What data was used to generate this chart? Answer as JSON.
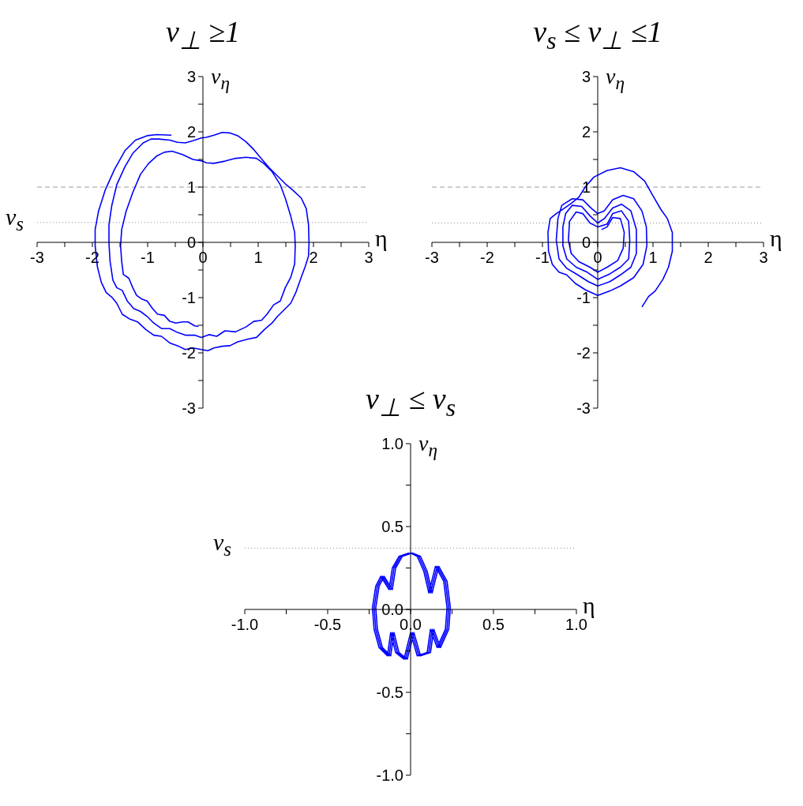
{
  "chart_data": [
    {
      "type": "line",
      "title": "v$_{⊥}$ ≥1",
      "xlabel": "η",
      "ylabel": "v$_{η}$",
      "xlim": [
        -3,
        3
      ],
      "ylim": [
        -3,
        3
      ],
      "xticks": [
        -3,
        {
          "value": -2.5,
          "label": null
        },
        -2,
        {
          "value": -1.5,
          "label": null
        },
        -1,
        {
          "value": -0.5,
          "label": null
        },
        0,
        {
          "value": 0.5,
          "label": null
        },
        1,
        {
          "value": 1.5,
          "label": null
        },
        2,
        {
          "value": 2.5,
          "label": null
        },
        3
      ],
      "yticks": [
        -3,
        {
          "value": -2.5,
          "label": null
        },
        -2,
        {
          "value": -1.5,
          "label": null
        },
        -1,
        {
          "value": -0.5,
          "label": null
        },
        0,
        {
          "value": 0.5,
          "label": null
        },
        1,
        {
          "value": 1.5,
          "label": null
        },
        2,
        {
          "value": 2.5,
          "label": null
        },
        3
      ],
      "ref_lines": [
        {
          "axis": "y",
          "value": 1,
          "color": "#999999",
          "line_style": "dashed"
        },
        {
          "axis": "y",
          "value": 0.36,
          "label": "v$_{s}$",
          "color": "#888888",
          "line_style": "dotted"
        }
      ],
      "series": [
        {
          "color": "#0000ff",
          "x": [
            -0.57,
            -0.84,
            -1.01,
            -1.22,
            -1.41,
            -1.6,
            -1.77,
            -1.89,
            -1.95,
            -1.95,
            -1.91,
            -1.84,
            -1.75,
            -1.65,
            -1.56,
            -1.46,
            -1.32,
            -1.18,
            -1.03,
            -0.89,
            -0.75,
            -0.6,
            -0.46,
            -0.32,
            -0.18,
            -0.03,
            0.09,
            0.2,
            0.35,
            0.49,
            0.63,
            0.82,
            0.97,
            1.11,
            1.25,
            1.35,
            1.49,
            1.59,
            1.68,
            1.78,
            1.85,
            1.91,
            1.92,
            1.91,
            1.87,
            1.78,
            1.63,
            1.49,
            1.35,
            1.2,
            1.06,
            0.92,
            0.78,
            0.63,
            0.49,
            0.35,
            0.2,
            0.06,
            -0.03,
            -0.18,
            -0.32,
            -0.46,
            -0.6,
            -0.8,
            -0.94,
            -1.08,
            -1.27,
            -1.41,
            -1.56,
            -1.65,
            -1.7,
            -1.7,
            -1.68,
            -1.63,
            -1.56,
            -1.46,
            -1.37,
            -1.25,
            -1.13,
            -1.01,
            -0.89,
            -0.75,
            -0.6,
            -0.46,
            -0.32,
            -0.15,
            -0.03,
            0.11,
            0.25,
            0.4,
            0.59,
            0.78,
            0.92,
            1.06,
            1.16,
            1.28,
            1.4,
            1.49,
            1.59,
            1.66,
            1.67,
            1.66,
            1.59,
            1.49,
            1.4,
            1.25,
            1.11,
            0.97,
            0.78,
            0.59,
            0.4,
            0.2,
            0.06,
            0.0,
            -0.18,
            -0.37,
            -0.56,
            -0.7,
            -0.84,
            -0.99,
            -1.13,
            -1.27,
            -1.39,
            -1.47,
            -1.49,
            -1.47,
            -1.44,
            -1.34,
            -1.27,
            -1.2,
            -1.1,
            -1.01,
            -0.91,
            -0.82,
            -0.7,
            -0.6,
            -0.49,
            -0.37,
            -0.27,
            -0.15,
            -0.08
          ],
          "values": [
            1.94,
            1.95,
            1.93,
            1.85,
            1.66,
            1.32,
            0.94,
            0.56,
            0.23,
            -0.06,
            -0.44,
            -0.72,
            -0.91,
            -0.99,
            -1.1,
            -1.3,
            -1.39,
            -1.44,
            -1.58,
            -1.68,
            -1.7,
            -1.82,
            -1.87,
            -1.94,
            -1.91,
            -1.94,
            -1.96,
            -1.91,
            -1.88,
            -1.87,
            -1.8,
            -1.75,
            -1.72,
            -1.58,
            -1.46,
            -1.34,
            -1.2,
            -1.1,
            -0.91,
            -0.63,
            -0.44,
            -0.25,
            -0.01,
            0.32,
            0.61,
            0.8,
            0.94,
            1.06,
            1.2,
            1.35,
            1.51,
            1.68,
            1.82,
            1.93,
            1.98,
            1.99,
            1.94,
            1.9,
            1.89,
            1.84,
            1.8,
            1.81,
            1.85,
            1.87,
            1.87,
            1.8,
            1.61,
            1.37,
            1.04,
            0.66,
            0.32,
            -0.01,
            -0.34,
            -0.68,
            -0.82,
            -0.87,
            -1.06,
            -1.2,
            -1.25,
            -1.34,
            -1.46,
            -1.56,
            -1.56,
            -1.63,
            -1.68,
            -1.68,
            -1.72,
            -1.67,
            -1.7,
            -1.6,
            -1.62,
            -1.53,
            -1.43,
            -1.41,
            -1.3,
            -1.13,
            -1.06,
            -0.82,
            -0.63,
            -0.39,
            -0.06,
            0.18,
            0.47,
            0.8,
            1.04,
            1.28,
            1.42,
            1.52,
            1.54,
            1.52,
            1.47,
            1.43,
            1.44,
            1.47,
            1.5,
            1.59,
            1.65,
            1.63,
            1.56,
            1.42,
            1.23,
            0.9,
            0.56,
            0.23,
            -0.06,
            -0.34,
            -0.58,
            -0.65,
            -0.82,
            -0.96,
            -1.03,
            -1.06,
            -1.2,
            -1.3,
            -1.32,
            -1.43,
            -1.46,
            -1.44,
            -1.44,
            -1.51,
            -1.52
          ]
        }
      ]
    },
    {
      "type": "line",
      "title": "v$_{s}$ ≤ v$_{⊥}$ ≤1",
      "xlabel": "η",
      "ylabel": "v$_{η}$",
      "xlim": [
        -3,
        3
      ],
      "ylim": [
        -3,
        3
      ],
      "xticks": [
        -3,
        {
          "value": -2.5,
          "label": null
        },
        -2,
        {
          "value": -1.5,
          "label": null
        },
        -1,
        {
          "value": -0.5,
          "label": null
        },
        0,
        {
          "value": 0.5,
          "label": null
        },
        1,
        {
          "value": 1.5,
          "label": null
        },
        2,
        {
          "value": 2.5,
          "label": null
        },
        3
      ],
      "yticks": [
        -3,
        {
          "value": -2.5,
          "label": null
        },
        -2,
        {
          "value": -1.5,
          "label": null
        },
        -1,
        {
          "value": -0.5,
          "label": null
        },
        0,
        {
          "value": 0.5,
          "label": null
        },
        1,
        {
          "value": 1.5,
          "label": null
        },
        2,
        {
          "value": 2.5,
          "label": null
        },
        3
      ],
      "ref_lines": [
        {
          "axis": "y",
          "value": 1,
          "color": "#999999",
          "line_style": "dashed"
        },
        {
          "axis": "y",
          "value": 0.35,
          "color": "#888888",
          "line_style": "dotted"
        }
      ],
      "series": [
        {
          "color": "#0000ff",
          "x": [
            0.8,
            0.92,
            1.04,
            1.18,
            1.28,
            1.35,
            1.35,
            1.26,
            1.14,
            0.99,
            0.85,
            0.65,
            0.41,
            0.17,
            -0.07,
            -0.22,
            -0.34,
            -0.46,
            -0.6,
            -0.75,
            -0.86,
            -0.9,
            -0.89,
            -0.82,
            -0.7,
            -0.56,
            -0.41,
            -0.22,
            0.0,
            0.22,
            0.41,
            0.65,
            0.82,
            0.89,
            0.88,
            0.8,
            0.65,
            0.46,
            0.27,
            0.12,
            0.0,
            -0.12,
            -0.27,
            -0.46,
            -0.65,
            -0.72,
            -0.75,
            -0.7,
            -0.56,
            -0.36,
            -0.17,
            0.0,
            0.22,
            0.41,
            0.6,
            0.7,
            0.7,
            0.6,
            0.43,
            0.27,
            0.12,
            0.0,
            -0.14,
            -0.29,
            -0.46,
            -0.58,
            -0.63,
            -0.63,
            -0.56,
            -0.39,
            -0.19,
            0.0,
            0.22,
            0.41,
            0.56,
            0.58,
            0.56,
            0.43,
            0.27,
            0.17,
            0.0,
            -0.14,
            -0.27,
            -0.39,
            -0.51,
            -0.53,
            -0.48,
            -0.34,
            -0.14,
            0.0,
            0.17,
            0.36,
            0.46,
            0.48,
            0.41,
            0.27,
            0.17,
            0.07
          ],
          "values": [
            -1.17,
            -0.98,
            -0.88,
            -0.67,
            -0.45,
            -0.16,
            0.18,
            0.43,
            0.6,
            0.86,
            1.11,
            1.28,
            1.35,
            1.3,
            1.18,
            1.01,
            0.82,
            0.72,
            0.62,
            0.52,
            0.43,
            0.18,
            -0.16,
            -0.4,
            -0.54,
            -0.59,
            -0.74,
            -0.86,
            -0.96,
            -0.88,
            -0.79,
            -0.64,
            -0.4,
            -0.06,
            0.28,
            0.57,
            0.79,
            0.85,
            0.77,
            0.57,
            0.52,
            0.62,
            0.77,
            0.79,
            0.67,
            0.43,
            0.04,
            -0.3,
            -0.47,
            -0.59,
            -0.71,
            -0.79,
            -0.71,
            -0.59,
            -0.45,
            -0.2,
            0.23,
            0.57,
            0.69,
            0.62,
            0.43,
            0.35,
            0.48,
            0.65,
            0.67,
            0.52,
            0.28,
            -0.06,
            -0.3,
            -0.45,
            -0.54,
            -0.67,
            -0.57,
            -0.45,
            -0.3,
            0.04,
            0.38,
            0.57,
            0.52,
            0.33,
            0.28,
            0.35,
            0.52,
            0.55,
            0.38,
            0.04,
            -0.2,
            -0.35,
            -0.45,
            -0.54,
            -0.45,
            -0.33,
            -0.11,
            0.18,
            0.43,
            0.45,
            0.28,
            0.23
          ]
        }
      ]
    },
    {
      "type": "line",
      "title": "v$_{⊥}$ ≤ v$_{s}$",
      "xlabel": "η",
      "ylabel": "v$_{η}$",
      "xlim": [
        -1,
        1
      ],
      "ylim": [
        -1,
        1
      ],
      "xticks": [
        {
          "value": -1,
          "label": "-1.0"
        },
        {
          "value": -0.75,
          "label": null
        },
        {
          "value": -0.5,
          "label": "-0.5"
        },
        {
          "value": -0.25,
          "label": null
        },
        {
          "value": 0,
          "label": "0.0"
        },
        {
          "value": 0.25,
          "label": null
        },
        {
          "value": 0.5,
          "label": "0.5"
        },
        {
          "value": 0.75,
          "label": null
        },
        {
          "value": 1,
          "label": "1.0"
        }
      ],
      "yticks": [
        {
          "value": -1,
          "label": "-1.0"
        },
        {
          "value": -0.75,
          "label": null
        },
        {
          "value": -0.5,
          "label": "-0.5"
        },
        {
          "value": -0.25,
          "label": null
        },
        {
          "value": 0,
          "label": "0.0"
        },
        {
          "value": 0.25,
          "label": null
        },
        {
          "value": 0.5,
          "label": "0.5"
        },
        {
          "value": 0.75,
          "label": null
        },
        {
          "value": 1,
          "label": "1.0"
        }
      ],
      "ref_lines": [
        {
          "axis": "y",
          "value": 0.37,
          "label": "v$_{s}$",
          "color": "#888888",
          "line_style": "dotted"
        }
      ],
      "series": [
        {
          "color": "#0000ff",
          "x": [
            -0.01,
            -0.07,
            -0.11,
            -0.13,
            -0.18,
            -0.21,
            -0.23,
            -0.22,
            -0.19,
            -0.14,
            -0.12,
            -0.09,
            -0.04,
            0.0,
            0.04,
            0.1,
            0.12,
            0.16,
            0.21,
            0.22,
            0.2,
            0.15,
            0.11,
            0.08,
            0.04,
            0.0,
            -0.06,
            -0.1,
            -0.12,
            -0.17,
            -0.2,
            -0.22,
            -0.21,
            -0.18,
            -0.13,
            -0.11,
            -0.08,
            -0.03,
            0.01,
            0.05,
            0.11,
            0.13,
            0.17,
            0.22,
            0.23,
            0.21,
            0.16,
            0.12,
            0.09,
            0.05,
            0.01,
            -0.05,
            -0.09,
            -0.11,
            -0.16,
            -0.19,
            -0.21,
            -0.2,
            -0.17,
            -0.12,
            -0.1,
            -0.07,
            -0.02,
            0.02,
            0.06,
            0.12,
            0.14,
            0.18,
            0.23,
            0.24,
            0.22,
            0.17,
            0.13,
            0.1,
            0.06,
            0.01
          ],
          "values": [
            0.34,
            0.32,
            0.25,
            0.12,
            0.2,
            0.14,
            0.01,
            -0.12,
            -0.23,
            -0.28,
            -0.14,
            -0.26,
            -0.3,
            -0.14,
            -0.28,
            -0.26,
            -0.12,
            -0.23,
            -0.12,
            0.01,
            0.17,
            0.26,
            0.1,
            0.23,
            0.32,
            0.34,
            0.32,
            0.25,
            0.12,
            0.2,
            0.14,
            0.01,
            -0.12,
            -0.23,
            -0.28,
            -0.14,
            -0.26,
            -0.3,
            -0.14,
            -0.28,
            -0.26,
            -0.12,
            -0.23,
            -0.12,
            0.01,
            0.17,
            0.26,
            0.1,
            0.23,
            0.32,
            0.34,
            0.32,
            0.25,
            0.12,
            0.2,
            0.14,
            0.01,
            -0.12,
            -0.23,
            -0.28,
            -0.14,
            -0.26,
            -0.3,
            -0.14,
            -0.28,
            -0.26,
            -0.12,
            -0.23,
            -0.12,
            0.01,
            0.17,
            0.26,
            0.1,
            0.23,
            0.32,
            0.34
          ]
        }
      ]
    }
  ]
}
